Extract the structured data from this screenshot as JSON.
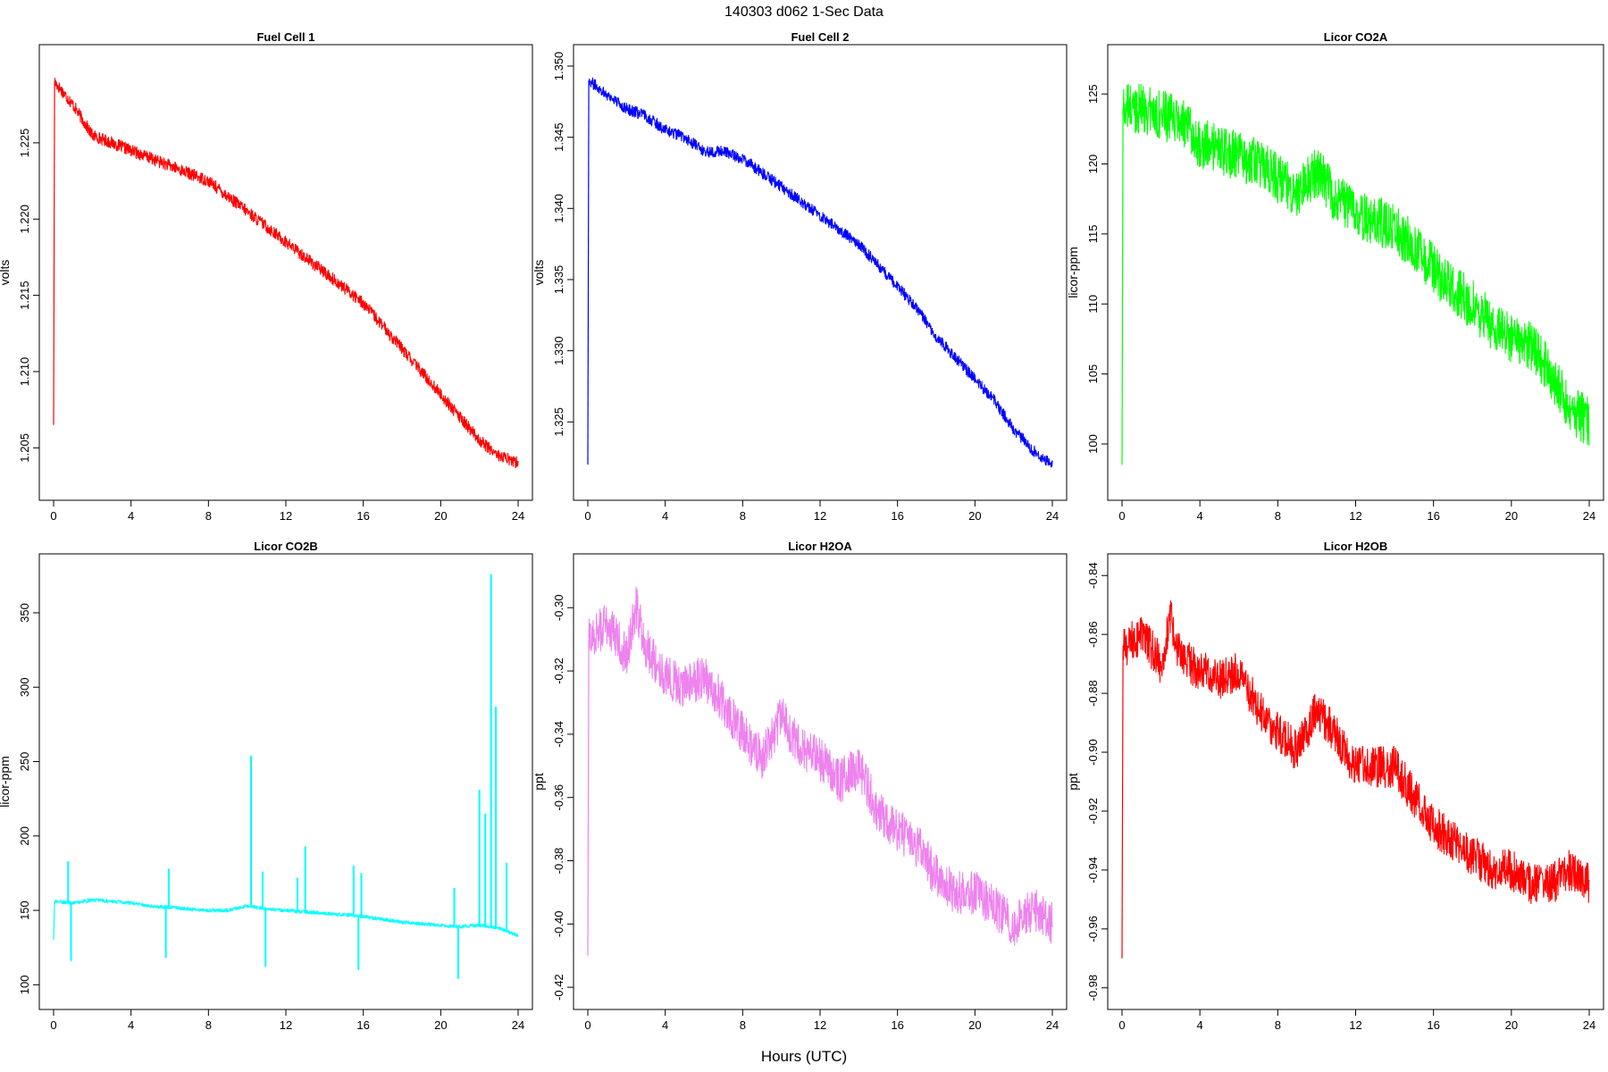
{
  "main_title": "140303   d062   1-Sec Data",
  "xlabel": "Hours (UTC)",
  "chart_data": [
    {
      "type": "line",
      "title": "Fuel Cell 1",
      "xlabel": "Hours (UTC)",
      "ylabel": "volts",
      "color": "#ff0000",
      "xlim": [
        0,
        24
      ],
      "ylim": [
        1.2025,
        1.2305
      ],
      "xticks": [
        0,
        4,
        8,
        12,
        16,
        20,
        24
      ],
      "yticks": [
        1.205,
        1.21,
        1.215,
        1.22,
        1.225
      ],
      "ytick_labels": [
        "1.205",
        "1.210",
        "1.215",
        "1.220",
        "1.225"
      ],
      "noise": 0.0004,
      "spikes": [
        {
          "x": 0.0,
          "y": 1.2065
        }
      ],
      "series": [
        {
          "x": [
            0.0,
            0.05,
            1,
            2,
            3,
            4,
            5,
            6,
            7,
            8,
            9,
            10,
            11,
            12,
            13,
            14,
            15,
            16,
            17,
            18,
            19,
            20,
            21,
            22,
            23,
            24
          ],
          "y": [
            1.2065,
            1.229,
            1.2275,
            1.2255,
            1.225,
            1.2245,
            1.224,
            1.2235,
            1.223,
            1.2225,
            1.2215,
            1.2205,
            1.2195,
            1.2185,
            1.2175,
            1.2165,
            1.2155,
            1.2145,
            1.213,
            1.2115,
            1.21,
            1.2085,
            1.207,
            1.2055,
            1.2045,
            1.204
          ]
        }
      ]
    },
    {
      "type": "line",
      "title": "Fuel Cell 2",
      "xlabel": "Hours (UTC)",
      "ylabel": "volts",
      "color": "#0000ff",
      "xlim": [
        0,
        24
      ],
      "ylim": [
        1.3205,
        1.3505
      ],
      "xticks": [
        0,
        4,
        8,
        12,
        16,
        20,
        24
      ],
      "yticks": [
        1.325,
        1.33,
        1.335,
        1.34,
        1.345,
        1.35
      ],
      "ytick_labels": [
        "1.325",
        "1.330",
        "1.335",
        "1.340",
        "1.345",
        "1.350"
      ],
      "noise": 0.0004,
      "spikes": [
        {
          "x": 0.0,
          "y": 1.322
        }
      ],
      "series": [
        {
          "x": [
            0.0,
            0.05,
            1,
            2,
            3,
            4,
            5,
            6,
            7,
            8,
            9,
            10,
            11,
            12,
            13,
            14,
            15,
            16,
            17,
            18,
            19,
            20,
            21,
            22,
            23,
            24
          ],
          "y": [
            1.322,
            1.349,
            1.348,
            1.347,
            1.3465,
            1.3455,
            1.345,
            1.344,
            1.344,
            1.3435,
            1.3425,
            1.3415,
            1.3405,
            1.3395,
            1.3385,
            1.3375,
            1.336,
            1.3345,
            1.333,
            1.331,
            1.3295,
            1.328,
            1.3265,
            1.3245,
            1.323,
            1.322
          ]
        }
      ]
    },
    {
      "type": "line",
      "title": "Licor CO2A",
      "xlabel": "Hours (UTC)",
      "ylabel": "licor-ppm",
      "color": "#00ff00",
      "xlim": [
        0,
        24
      ],
      "ylim": [
        97,
        127.5
      ],
      "xticks": [
        0,
        4,
        8,
        12,
        16,
        20,
        24
      ],
      "yticks": [
        100,
        105,
        110,
        115,
        120,
        125
      ],
      "ytick_labels": [
        "100",
        "105",
        "110",
        "115",
        "120",
        "125"
      ],
      "noise": 1.8,
      "spikes": [
        {
          "x": 0.0,
          "y": 98.5
        }
      ],
      "series": [
        {
          "x": [
            0.0,
            0.05,
            1,
            2,
            3,
            4,
            5,
            6,
            7,
            8,
            9,
            10,
            11,
            12,
            13,
            14,
            15,
            16,
            17,
            18,
            19,
            20,
            21,
            22,
            23,
            24
          ],
          "y": [
            98.5,
            124.0,
            124.0,
            123.5,
            123.0,
            121.5,
            121.0,
            120.5,
            120.0,
            119.0,
            118.0,
            119.5,
            117.5,
            116.5,
            116.0,
            115.5,
            114.0,
            112.5,
            111.0,
            110.0,
            108.5,
            107.5,
            107.0,
            105.0,
            102.5,
            101.5
          ]
        }
      ]
    },
    {
      "type": "line",
      "title": "Licor CO2B",
      "xlabel": "Hours (UTC)",
      "ylabel": "licor-ppm",
      "color": "#00ffff",
      "xlim": [
        0,
        24
      ],
      "ylim": [
        93,
        380
      ],
      "xticks": [
        0,
        4,
        8,
        12,
        16,
        20,
        24
      ],
      "yticks": [
        100,
        150,
        200,
        250,
        300,
        350
      ],
      "ytick_labels": [
        "100",
        "150",
        "200",
        "250",
        "300",
        "350"
      ],
      "noise": 1.2,
      "spikes": [
        {
          "x": 0.75,
          "y": 183
        },
        {
          "x": 0.9,
          "y": 116
        },
        {
          "x": 5.8,
          "y": 118
        },
        {
          "x": 5.95,
          "y": 178
        },
        {
          "x": 10.2,
          "y": 254
        },
        {
          "x": 10.8,
          "y": 176
        },
        {
          "x": 10.95,
          "y": 112
        },
        {
          "x": 13.0,
          "y": 193
        },
        {
          "x": 12.6,
          "y": 172
        },
        {
          "x": 15.5,
          "y": 180
        },
        {
          "x": 15.75,
          "y": 110
        },
        {
          "x": 15.9,
          "y": 175
        },
        {
          "x": 20.7,
          "y": 165
        },
        {
          "x": 20.9,
          "y": 104
        },
        {
          "x": 22.0,
          "y": 231
        },
        {
          "x": 22.3,
          "y": 215
        },
        {
          "x": 22.6,
          "y": 376
        },
        {
          "x": 22.85,
          "y": 287
        },
        {
          "x": 23.4,
          "y": 182
        }
      ],
      "series": [
        {
          "x": [
            0.0,
            0.05,
            1,
            2,
            3,
            4,
            5,
            6,
            7,
            8,
            9,
            10,
            11,
            12,
            13,
            14,
            15,
            16,
            17,
            18,
            19,
            20,
            21,
            22,
            23,
            24
          ],
          "y": [
            130,
            156,
            155,
            157,
            156,
            155,
            153,
            152,
            151,
            150,
            150,
            153,
            151,
            150,
            149,
            148,
            147,
            146,
            144,
            142,
            141,
            140,
            139,
            140,
            138,
            133
          ]
        }
      ]
    },
    {
      "type": "line",
      "title": "Licor H2OA",
      "xlabel": "Hours (UTC)",
      "ylabel": "ppt",
      "color": "#ee82ee",
      "xlim": [
        0,
        24
      ],
      "ylim": [
        -0.4225,
        -0.2875
      ],
      "xticks": [
        0,
        4,
        8,
        12,
        16,
        20,
        24
      ],
      "yticks": [
        -0.42,
        -0.4,
        -0.38,
        -0.36,
        -0.34,
        -0.32,
        -0.3
      ],
      "ytick_labels": [
        "-0.42",
        "-0.40",
        "-0.38",
        "-0.36",
        "-0.34",
        "-0.32",
        "-0.30"
      ],
      "noise": 0.007,
      "spikes": [
        {
          "x": 0.0,
          "y": -0.41
        }
      ],
      "series": [
        {
          "x": [
            0.0,
            0.05,
            1,
            1.5,
            2,
            2.5,
            3,
            4,
            5,
            6,
            7,
            8,
            9,
            10,
            11,
            12,
            13,
            14,
            15,
            16,
            17,
            18,
            19,
            20,
            21,
            22,
            23,
            24
          ],
          "y": [
            -0.41,
            -0.31,
            -0.305,
            -0.31,
            -0.315,
            -0.3,
            -0.312,
            -0.322,
            -0.325,
            -0.322,
            -0.33,
            -0.34,
            -0.347,
            -0.335,
            -0.345,
            -0.348,
            -0.355,
            -0.35,
            -0.365,
            -0.37,
            -0.375,
            -0.385,
            -0.39,
            -0.39,
            -0.395,
            -0.4,
            -0.395,
            -0.4
          ]
        }
      ]
    },
    {
      "type": "line",
      "title": "Licor H2OB",
      "xlabel": "Hours (UTC)",
      "ylabel": "ppt",
      "color": "#ff0000",
      "xlim": [
        0,
        24
      ],
      "ylim": [
        -0.9825,
        -0.8375
      ],
      "xticks": [
        0,
        4,
        8,
        12,
        16,
        20,
        24
      ],
      "yticks": [
        -0.98,
        -0.96,
        -0.94,
        -0.92,
        -0.9,
        -0.88,
        -0.86,
        -0.84
      ],
      "ytick_labels": [
        "-0.98",
        "-0.96",
        "-0.94",
        "-0.92",
        "-0.90",
        "-0.88",
        "-0.86",
        "-0.84"
      ],
      "noise": 0.007,
      "spikes": [
        {
          "x": 0.0,
          "y": -0.97
        }
      ],
      "series": [
        {
          "x": [
            0.0,
            0.05,
            1,
            1.5,
            2,
            2.5,
            3,
            4,
            5,
            6,
            7,
            8,
            9,
            10,
            11,
            12,
            13,
            14,
            15,
            16,
            17,
            18,
            19,
            20,
            21,
            22,
            23,
            24
          ],
          "y": [
            -0.97,
            -0.865,
            -0.86,
            -0.865,
            -0.87,
            -0.855,
            -0.868,
            -0.872,
            -0.875,
            -0.873,
            -0.885,
            -0.893,
            -0.9,
            -0.885,
            -0.895,
            -0.905,
            -0.905,
            -0.905,
            -0.915,
            -0.925,
            -0.93,
            -0.935,
            -0.94,
            -0.94,
            -0.945,
            -0.945,
            -0.94,
            -0.945
          ]
        }
      ]
    }
  ]
}
